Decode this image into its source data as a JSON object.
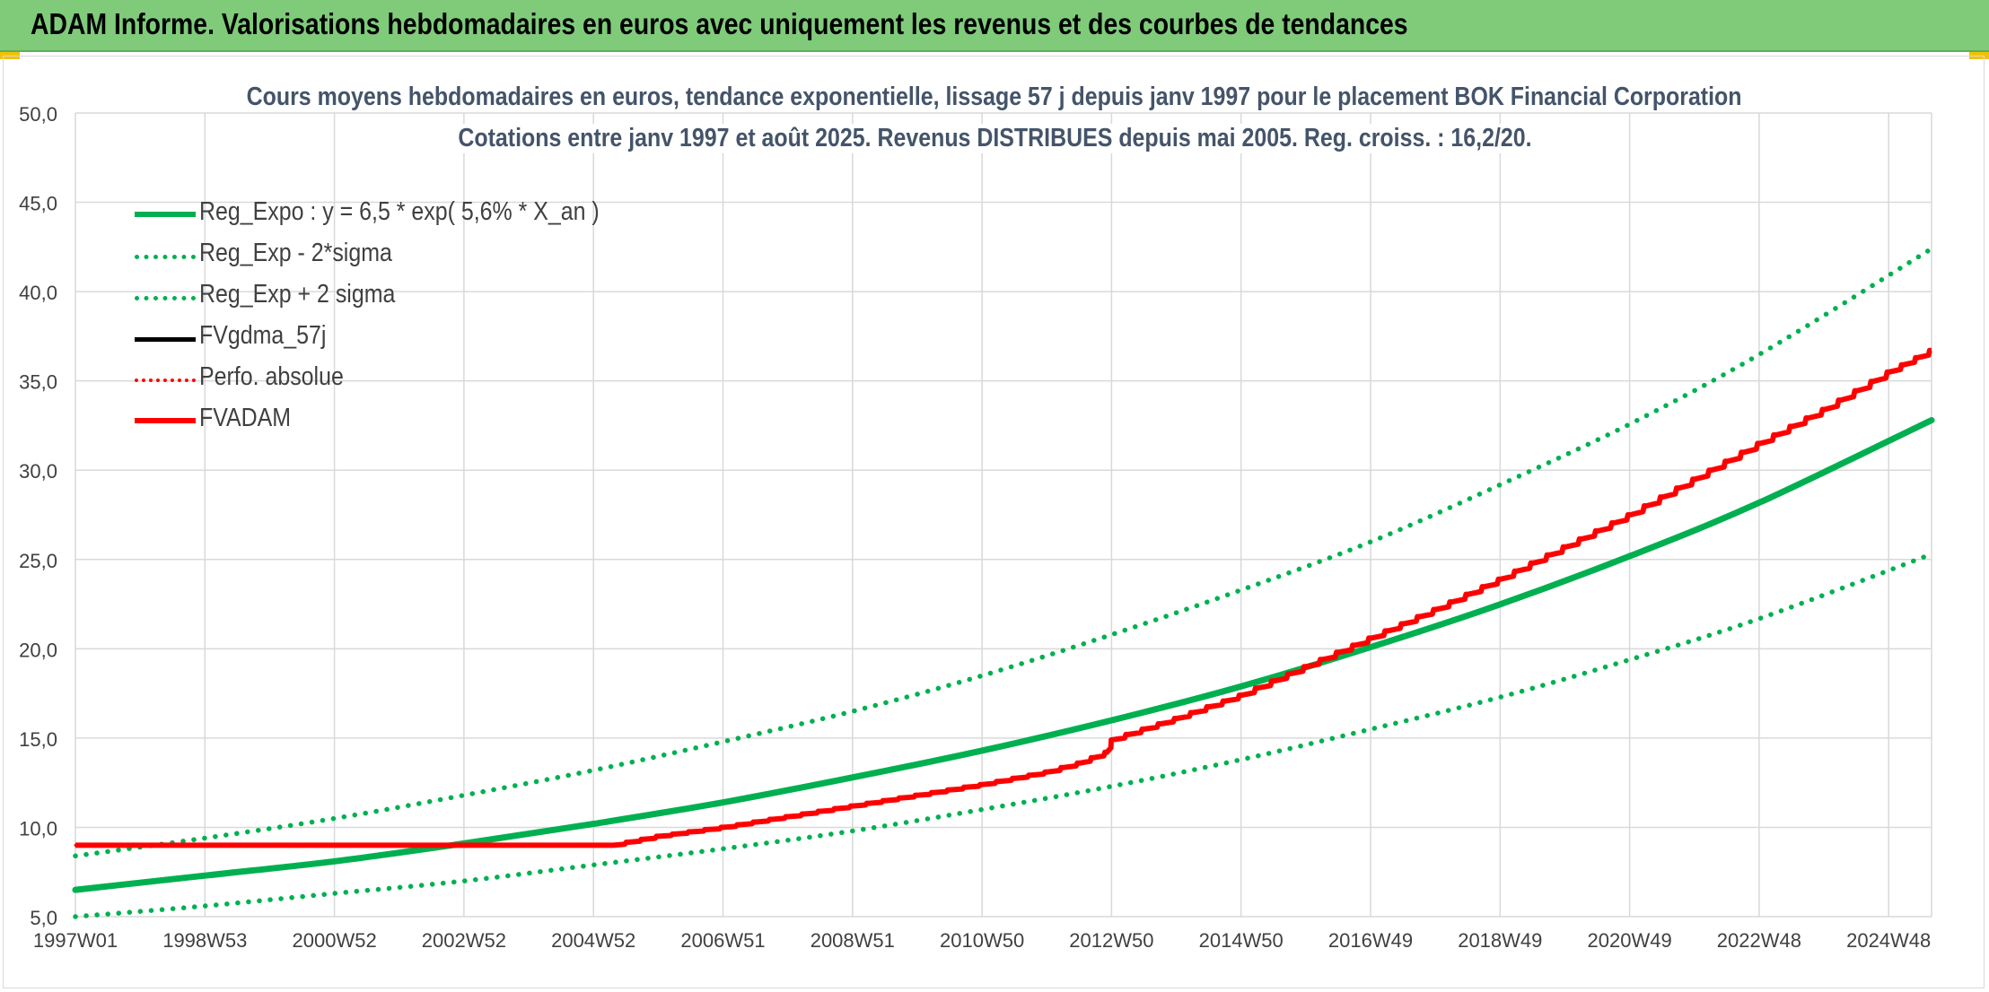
{
  "banner": {
    "title": "ADAM Informe. Valorisations hebdomadaires en euros avec uniquement les revenus et des courbes de tendances"
  },
  "colors": {
    "banner_bg": "#7fcb7a",
    "trend": "#00b050",
    "fv": "#000000",
    "perf": "#ff0000",
    "adam": "#ff0000",
    "title_text": "#44546a"
  },
  "chart_data": {
    "type": "line",
    "title": "Cours moyens hebdomadaires en euros, tendance exponentielle, lissage 57 j depuis janv 1997 pour le placement BOK Financial Corporation",
    "subtitle": "Cotations entre janv 1997 et août 2025. Revenus DISTRIBUES depuis mai 2005. Reg. croiss. : 16,2/20.",
    "xlabel": "",
    "ylabel": "",
    "x_ticks": [
      "1997W01",
      "1998W53",
      "2000W52",
      "2002W52",
      "2004W52",
      "2006W51",
      "2008W51",
      "2010W50",
      "2012W50",
      "2014W50",
      "2016W49",
      "2018W49",
      "2020W49",
      "2022W48",
      "2024W48"
    ],
    "y_ticks": [
      "5,0",
      "10,0",
      "15,0",
      "20,0",
      "25,0",
      "30,0",
      "35,0",
      "40,0",
      "45,0",
      "50,0"
    ],
    "ylim": [
      5,
      50
    ],
    "xlim": [
      1997.0,
      2025.65
    ],
    "grid": true,
    "legend_position": "top-left",
    "series": [
      {
        "name": "Reg_Expo : y = 6,5 * exp( 5,6% *  X_an )",
        "style": "solid-thick",
        "color": "#00b050",
        "x": [
          1997.0,
          1999.0,
          2001.0,
          2003.0,
          2005.0,
          2007.0,
          2009.0,
          2011.0,
          2013.0,
          2015.0,
          2017.0,
          2019.0,
          2021.0,
          2023.0,
          2025.65
        ],
        "y": [
          6.5,
          7.3,
          8.1,
          9.1,
          10.2,
          11.4,
          12.8,
          14.3,
          16.0,
          17.9,
          20.1,
          22.5,
          25.2,
          28.2,
          32.8
        ]
      },
      {
        "name": "Reg_Exp - 2*sigma",
        "style": "dotted",
        "color": "#00b050",
        "x": [
          1997.0,
          1999.0,
          2001.0,
          2003.0,
          2005.0,
          2007.0,
          2009.0,
          2011.0,
          2013.0,
          2015.0,
          2017.0,
          2019.0,
          2021.0,
          2023.0,
          2025.65
        ],
        "y": [
          5.0,
          5.6,
          6.3,
          7.0,
          7.9,
          8.8,
          9.8,
          11.0,
          12.3,
          13.8,
          15.5,
          17.3,
          19.4,
          21.7,
          25.3
        ]
      },
      {
        "name": "Reg_Exp + 2 sigma",
        "style": "dotted",
        "color": "#00b050",
        "x": [
          1997.0,
          1999.0,
          2001.0,
          2003.0,
          2005.0,
          2007.0,
          2009.0,
          2011.0,
          2013.0,
          2015.0,
          2017.0,
          2019.0,
          2021.0,
          2023.0,
          2025.65
        ],
        "y": [
          8.4,
          9.4,
          10.5,
          11.8,
          13.2,
          14.8,
          16.5,
          18.5,
          20.8,
          23.3,
          26.0,
          29.2,
          32.6,
          36.5,
          42.4
        ]
      },
      {
        "name": "FVgdma_57j",
        "style": "solid",
        "color": "#000000",
        "x": [
          1997.0,
          2000.0,
          2003.0,
          2005.3,
          2006.0,
          2007.0,
          2008.0,
          2009.0,
          2010.0,
          2011.0,
          2012.0,
          2012.5,
          2012.92,
          2013.0,
          2014.0,
          2015.0,
          2016.0,
          2017.0,
          2018.0,
          2019.0,
          2020.0,
          2021.0,
          2022.0,
          2023.0,
          2024.0,
          2025.0,
          2025.65
        ],
        "y": [
          9.0,
          9.0,
          9.0,
          9.0,
          9.5,
          10.0,
          10.6,
          11.2,
          11.8,
          12.4,
          13.1,
          13.6,
          14.2,
          14.9,
          16.1,
          17.4,
          19.0,
          20.6,
          22.2,
          23.9,
          25.7,
          27.5,
          29.5,
          31.5,
          33.4,
          35.5,
          36.7
        ]
      },
      {
        "name": "Perfo. absolue",
        "style": "dotted",
        "color": "#ff0000",
        "x": [
          1997.0,
          2000.0,
          2003.0,
          2005.3,
          2006.0,
          2007.0,
          2008.0,
          2009.0,
          2010.0,
          2011.0,
          2012.0,
          2012.5,
          2012.92,
          2013.0,
          2014.0,
          2015.0,
          2016.0,
          2017.0,
          2018.0,
          2019.0,
          2020.0,
          2021.0,
          2022.0,
          2023.0,
          2024.0,
          2025.0,
          2025.65
        ],
        "y": [
          9.0,
          9.0,
          9.0,
          9.0,
          9.5,
          10.0,
          10.6,
          11.2,
          11.8,
          12.4,
          13.1,
          13.6,
          14.2,
          14.9,
          16.1,
          17.4,
          19.0,
          20.6,
          22.2,
          23.9,
          25.7,
          27.5,
          29.5,
          31.5,
          33.4,
          35.5,
          36.7
        ]
      },
      {
        "name": "FVADAM",
        "style": "solid-thick",
        "color": "#ff0000",
        "x": [
          1997.0,
          2000.0,
          2003.0,
          2005.3,
          2006.0,
          2007.0,
          2008.0,
          2009.0,
          2010.0,
          2011.0,
          2012.0,
          2012.5,
          2012.92,
          2013.0,
          2014.0,
          2015.0,
          2016.0,
          2017.0,
          2018.0,
          2019.0,
          2020.0,
          2021.0,
          2022.0,
          2023.0,
          2024.0,
          2025.0,
          2025.65
        ],
        "y": [
          9.0,
          9.0,
          9.0,
          9.0,
          9.5,
          10.0,
          10.6,
          11.2,
          11.8,
          12.4,
          13.1,
          13.6,
          14.2,
          14.9,
          16.1,
          17.4,
          19.0,
          20.6,
          22.2,
          23.9,
          25.7,
          27.5,
          29.5,
          31.5,
          33.4,
          35.5,
          36.7
        ]
      }
    ]
  }
}
